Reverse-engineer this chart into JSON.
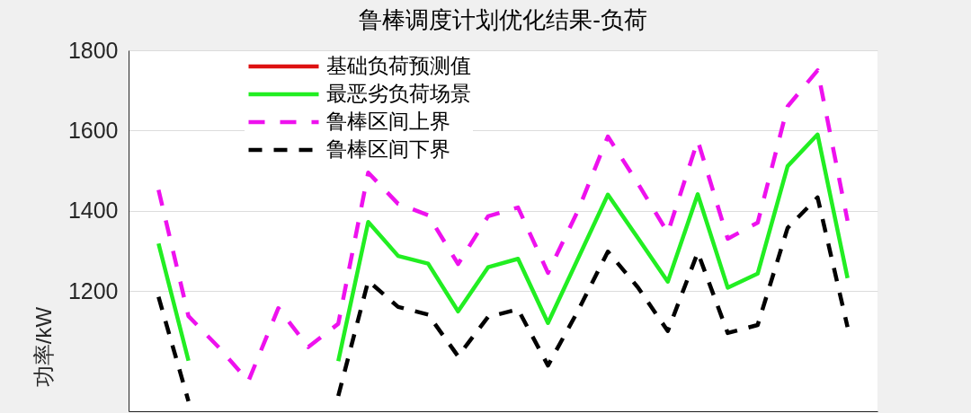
{
  "chart_data": {
    "type": "line",
    "title": "鲁棒调度计划优化结果-负荷",
    "ylabel": "功率/kW",
    "categories": [
      null,
      null,
      null,
      null,
      null,
      null,
      null,
      null,
      null,
      null,
      null,
      null,
      null,
      null,
      null,
      null,
      null,
      null,
      null,
      null,
      null,
      null,
      null,
      null
    ],
    "series": [
      {
        "name": "基础负荷预测值",
        "color": "#dd1111",
        "line_style": "solid",
        "values": [
          null,
          null,
          null,
          null,
          null,
          null,
          null,
          null,
          null,
          null,
          null,
          null,
          null,
          null,
          null,
          null,
          null,
          null,
          null,
          null,
          null,
          null,
          null,
          null
        ]
      },
      {
        "name": "最恶劣负荷场景",
        "color": "#22ee22",
        "line_style": "solid",
        "values": [
          1318,
          1026,
          null,
          null,
          null,
          null,
          1025,
          1372,
          1287,
          1268,
          1149,
          1259,
          1280,
          1120,
          1280,
          1440,
          1332,
          1223,
          1441,
          1208,
          1243,
          1511,
          1590,
          1232
        ]
      },
      {
        "name": "鲁棒区间上界",
        "color": "#ee11ee",
        "line_style": "dashed",
        "values": [
          1452,
          1137,
          1060,
          975,
          1157,
          1060,
          1118,
          1495,
          1417,
          1389,
          1267,
          1386,
          1408,
          1245,
          1400,
          1585,
          1468,
          1345,
          1575,
          1330,
          1370,
          1660,
          1750,
          1375
        ]
      },
      {
        "name": "鲁棒区间下界",
        "color": "#000000",
        "line_style": "dashed",
        "values": [
          1185,
          925,
          null,
          null,
          null,
          null,
          938,
          1225,
          1160,
          1141,
          1037,
          1135,
          1154,
          1014,
          1150,
          1298,
          1209,
          1100,
          1296,
          1095,
          1115,
          1357,
          1433,
          1110
        ]
      }
    ],
    "ylim": [
      900,
      1800
    ],
    "yticks": [
      1200,
      1400,
      1600,
      1800
    ],
    "grid": "y",
    "legend": "top left",
    "tick_labels": "y"
  }
}
